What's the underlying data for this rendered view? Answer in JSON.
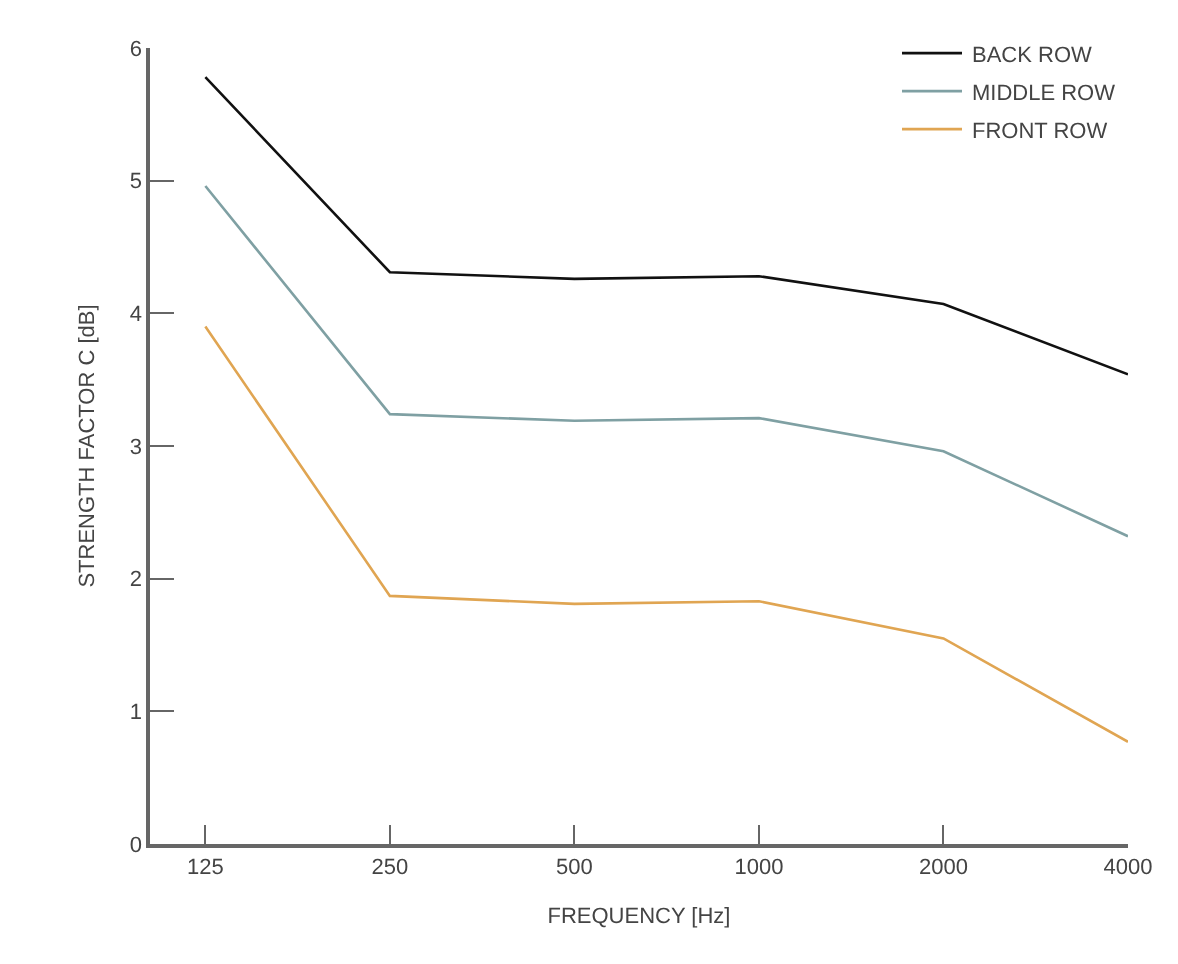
{
  "chart_data": {
    "type": "line",
    "xlabel": "FREQUENCY [Hz]",
    "ylabel": "STRENGTH FACTOR C [dB]",
    "categories": [
      "125",
      "250",
      "500",
      "1000",
      "2000",
      "4000"
    ],
    "series": [
      {
        "name": "BACK ROW",
        "color": "#111111",
        "values": [
          5.78,
          4.31,
          4.26,
          4.28,
          4.07,
          3.54
        ]
      },
      {
        "name": "MIDDLE ROW",
        "color": "#7fa0a3",
        "values": [
          4.96,
          3.24,
          3.19,
          3.21,
          2.96,
          2.32
        ]
      },
      {
        "name": "FRONT ROW",
        "color": "#e0a552",
        "values": [
          3.9,
          1.87,
          1.81,
          1.83,
          1.55,
          0.77
        ]
      }
    ],
    "ylim": [
      0,
      6
    ],
    "yticks": [
      0,
      1,
      2,
      3,
      4,
      5,
      6
    ],
    "legend": "top right",
    "marker": "none",
    "line_style": "solid"
  }
}
